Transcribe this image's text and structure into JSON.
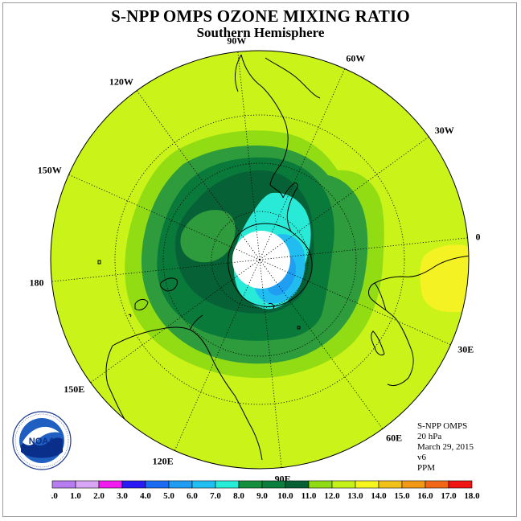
{
  "title": "S-NPP OMPS OZONE MIXING RATIO",
  "subtitle": "Southern Hemisphere",
  "longitude_labels": [
    "90W",
    "60W",
    "30W",
    "0",
    "30E",
    "60E",
    "90E",
    "120E",
    "150E",
    "180",
    "150W",
    "120W"
  ],
  "info": {
    "product": "S-NPP OMPS",
    "level": "20 hPa",
    "date": "March 29, 2015",
    "version": "v6",
    "units": "PPM"
  },
  "logo_text": "NOAA",
  "legend": {
    "ticks": [
      "0.0",
      "1.0",
      "2.0",
      "3.0",
      "4.0",
      "5.0",
      "6.0",
      "7.0",
      "8.0",
      "9.0",
      "10.0",
      "11.0",
      "12.0",
      "13.0",
      "14.0",
      "15.0",
      "16.0",
      "17.0",
      "18.0"
    ],
    "colors": [
      "#b77cf0",
      "#d9a6f5",
      "#f01cf0",
      "#2a1af5",
      "#1b6cf2",
      "#1f9df2",
      "#20bff2",
      "#27ecd8",
      "#168f3d",
      "#0a7e3a",
      "#085f34",
      "#8fdc14",
      "#c4f11a",
      "#f6f51f",
      "#f2c21a",
      "#f29a16",
      "#f26618",
      "#f01412",
      "#8a5a3a"
    ]
  },
  "map_colors": {
    "background": "#c9f319",
    "level_12": "#c3ee1c",
    "level_11": "#92dc14",
    "level_10": "#2e9c3c",
    "level_9": "#0a7a3a",
    "level_8": "#066236",
    "level_7": "#28ead6",
    "level_6": "#21bdf1",
    "level_5": "#1f9ef2",
    "level_13": "#f5f223",
    "missing": "#ffffff"
  }
}
